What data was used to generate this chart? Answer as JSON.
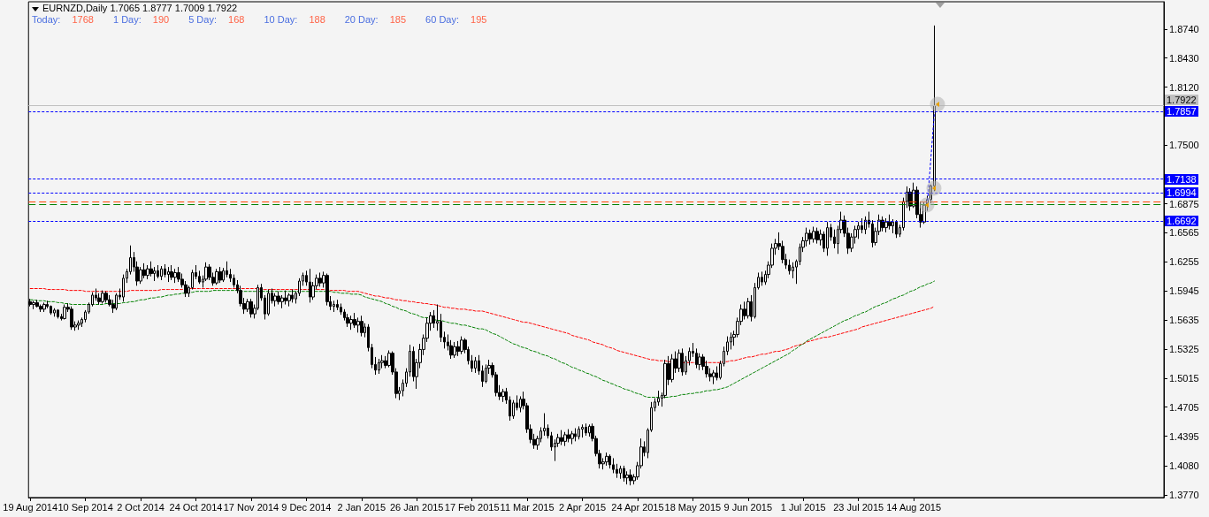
{
  "chart_data": {
    "type": "candlestick",
    "title": "EURNZD,Daily 1.7065 1.8777 1.7009 1.7922",
    "annotations": [
      "Today: 1768",
      "1 Day: 190",
      "5 Day: 168",
      "10 Day: 188",
      "20 Day: 185",
      "60 Day: 195"
    ],
    "categories": [
      "19 Aug 2014",
      null,
      null,
      null,
      null,
      null,
      null,
      null,
      null,
      null,
      null,
      null,
      null,
      null,
      null,
      null,
      "10 Sep 2014",
      null,
      null,
      null,
      null,
      null,
      null,
      null,
      null,
      null,
      null,
      null,
      null,
      null,
      null,
      null,
      "2 Oct 2014",
      null,
      null,
      null,
      null,
      null,
      null,
      null,
      null,
      null,
      null,
      null,
      null,
      null,
      null,
      null,
      "24 Oct 2014",
      null,
      null,
      null,
      null,
      null,
      null,
      null,
      null,
      null,
      null,
      null,
      null,
      null,
      null,
      null,
      "17 Nov 2014",
      null,
      null,
      null,
      null,
      null,
      null,
      null,
      null,
      null,
      null,
      null,
      null,
      null,
      null,
      null,
      "9 Dec 2014",
      null,
      null,
      null,
      null,
      null,
      null,
      null,
      null,
      null,
      null,
      null,
      null,
      null,
      null,
      null,
      "2 Jan 2015",
      null,
      null,
      null,
      null,
      null,
      null,
      null,
      null,
      null,
      null,
      null,
      null,
      null,
      null,
      null,
      "26 Jan 2015",
      null,
      null,
      null,
      null,
      null,
      null,
      null,
      null,
      null,
      null,
      null,
      null,
      null,
      null,
      null,
      "17 Feb 2015",
      null,
      null,
      null,
      null,
      null,
      null,
      null,
      null,
      null,
      null,
      null,
      null,
      null,
      null,
      null,
      "11 Mar 2015",
      null,
      null,
      null,
      null,
      null,
      null,
      null,
      null,
      null,
      null,
      null,
      null,
      null,
      null,
      null,
      "2 Apr 2015",
      null,
      null,
      null,
      null,
      null,
      null,
      null,
      null,
      null,
      null,
      null,
      null,
      null,
      null,
      null,
      "24 Apr 2015",
      null,
      null,
      null,
      null,
      null,
      null,
      null,
      null,
      null,
      null,
      null,
      null,
      null,
      null,
      null,
      "18 May 2015",
      null,
      null,
      null,
      null,
      null,
      null,
      null,
      null,
      null,
      null,
      null,
      null,
      null,
      null,
      null,
      "9 Jun 2015",
      null,
      null,
      null,
      null,
      null,
      null,
      null,
      null,
      null,
      null,
      null,
      null,
      null,
      null,
      null,
      "1 Jul 2015",
      null,
      null,
      null,
      null,
      null,
      null,
      null,
      null,
      null,
      null,
      null,
      null,
      null,
      null,
      null,
      "23 Jul 2015",
      null,
      null,
      null,
      null,
      null,
      null,
      null,
      null,
      null,
      null,
      null,
      null,
      null,
      null,
      null,
      "14 Aug 2015",
      null,
      null,
      null,
      null,
      null,
      null
    ],
    "ohlc": [
      [
        1.583,
        1.586,
        1.578,
        1.58
      ],
      [
        1.58,
        1.584,
        1.575,
        1.582
      ],
      [
        1.582,
        1.585,
        1.577,
        1.578
      ],
      [
        1.578,
        1.58,
        1.572,
        1.575
      ],
      [
        1.575,
        1.582,
        1.572,
        1.58
      ],
      [
        1.58,
        1.584,
        1.576,
        1.578
      ],
      [
        1.578,
        1.579,
        1.569,
        1.571
      ],
      [
        1.571,
        1.576,
        1.567,
        1.574
      ],
      [
        1.574,
        1.575,
        1.565,
        1.567
      ],
      [
        1.567,
        1.57,
        1.563,
        1.565
      ],
      [
        1.565,
        1.58,
        1.564,
        1.577
      ],
      [
        1.577,
        1.581,
        1.572,
        1.575
      ],
      [
        1.575,
        1.578,
        1.553,
        1.556
      ],
      [
        1.556,
        1.562,
        1.552,
        1.558
      ],
      [
        1.558,
        1.563,
        1.553,
        1.56
      ],
      [
        1.56,
        1.566,
        1.556,
        1.564
      ],
      [
        1.564,
        1.574,
        1.561,
        1.572
      ],
      [
        1.572,
        1.582,
        1.57,
        1.58
      ],
      [
        1.58,
        1.593,
        1.578,
        1.59
      ],
      [
        1.59,
        1.597,
        1.584,
        1.587
      ],
      [
        1.587,
        1.592,
        1.58,
        1.583
      ],
      [
        1.583,
        1.595,
        1.581,
        1.592
      ],
      [
        1.592,
        1.594,
        1.582,
        1.585
      ],
      [
        1.585,
        1.59,
        1.578,
        1.58
      ],
      [
        1.58,
        1.585,
        1.571,
        1.576
      ],
      [
        1.576,
        1.592,
        1.574,
        1.59
      ],
      [
        1.59,
        1.597,
        1.585,
        1.588
      ],
      [
        1.588,
        1.612,
        1.583,
        1.608
      ],
      [
        1.608,
        1.618,
        1.603,
        1.615
      ],
      [
        1.615,
        1.643,
        1.612,
        1.63
      ],
      [
        1.63,
        1.636,
        1.615,
        1.62
      ],
      [
        1.62,
        1.626,
        1.6,
        1.605
      ],
      [
        1.605,
        1.62,
        1.602,
        1.617
      ],
      [
        1.617,
        1.624,
        1.608,
        1.611
      ],
      [
        1.611,
        1.622,
        1.607,
        1.618
      ],
      [
        1.618,
        1.626,
        1.61,
        1.613
      ],
      [
        1.613,
        1.62,
        1.605,
        1.616
      ],
      [
        1.616,
        1.622,
        1.608,
        1.61
      ],
      [
        1.61,
        1.621,
        1.606,
        1.618
      ],
      [
        1.618,
        1.623,
        1.609,
        1.612
      ],
      [
        1.612,
        1.62,
        1.604,
        1.615
      ],
      [
        1.615,
        1.622,
        1.606,
        1.609
      ],
      [
        1.609,
        1.618,
        1.603,
        1.614
      ],
      [
        1.614,
        1.62,
        1.604,
        1.607
      ],
      [
        1.607,
        1.613,
        1.598,
        1.601
      ],
      [
        1.601,
        1.605,
        1.588,
        1.592
      ],
      [
        1.592,
        1.6,
        1.588,
        1.598
      ],
      [
        1.598,
        1.617,
        1.596,
        1.614
      ],
      [
        1.614,
        1.622,
        1.607,
        1.61
      ],
      [
        1.61,
        1.616,
        1.602,
        1.604
      ],
      [
        1.604,
        1.611,
        1.598,
        1.607
      ],
      [
        1.607,
        1.625,
        1.605,
        1.62
      ],
      [
        1.62,
        1.623,
        1.606,
        1.609
      ],
      [
        1.609,
        1.614,
        1.6,
        1.603
      ],
      [
        1.603,
        1.618,
        1.601,
        1.615
      ],
      [
        1.615,
        1.62,
        1.603,
        1.606
      ],
      [
        1.606,
        1.619,
        1.604,
        1.616
      ],
      [
        1.616,
        1.626,
        1.609,
        1.612
      ],
      [
        1.612,
        1.618,
        1.604,
        1.608
      ],
      [
        1.608,
        1.612,
        1.598,
        1.601
      ],
      [
        1.601,
        1.606,
        1.592,
        1.595
      ],
      [
        1.595,
        1.6,
        1.578,
        1.581
      ],
      [
        1.581,
        1.587,
        1.57,
        1.575
      ],
      [
        1.575,
        1.586,
        1.572,
        1.583
      ],
      [
        1.583,
        1.586,
        1.566,
        1.57
      ],
      [
        1.57,
        1.58,
        1.565,
        1.576
      ],
      [
        1.576,
        1.601,
        1.574,
        1.598
      ],
      [
        1.598,
        1.602,
        1.584,
        1.587
      ],
      [
        1.587,
        1.59,
        1.564,
        1.57
      ],
      [
        1.57,
        1.596,
        1.568,
        1.592
      ],
      [
        1.592,
        1.597,
        1.581,
        1.584
      ],
      [
        1.584,
        1.592,
        1.578,
        1.589
      ],
      [
        1.589,
        1.594,
        1.58,
        1.583
      ],
      [
        1.583,
        1.59,
        1.576,
        1.587
      ],
      [
        1.587,
        1.595,
        1.58,
        1.584
      ],
      [
        1.584,
        1.592,
        1.578,
        1.59
      ],
      [
        1.59,
        1.596,
        1.582,
        1.586
      ],
      [
        1.586,
        1.594,
        1.581,
        1.592
      ],
      [
        1.592,
        1.608,
        1.589,
        1.605
      ],
      [
        1.605,
        1.614,
        1.6,
        1.611
      ],
      [
        1.611,
        1.616,
        1.6,
        1.604
      ],
      [
        1.604,
        1.618,
        1.582,
        1.588
      ],
      [
        1.588,
        1.604,
        1.585,
        1.6
      ],
      [
        1.6,
        1.612,
        1.596,
        1.608
      ],
      [
        1.608,
        1.614,
        1.599,
        1.603
      ],
      [
        1.603,
        1.615,
        1.598,
        1.611
      ],
      [
        1.611,
        1.613,
        1.579,
        1.583
      ],
      [
        1.583,
        1.589,
        1.574,
        1.578
      ],
      [
        1.578,
        1.584,
        1.572,
        1.58
      ],
      [
        1.58,
        1.585,
        1.574,
        1.577
      ],
      [
        1.577,
        1.581,
        1.569,
        1.572
      ],
      [
        1.572,
        1.575,
        1.563,
        1.566
      ],
      [
        1.566,
        1.57,
        1.556,
        1.56
      ],
      [
        1.56,
        1.568,
        1.553,
        1.564
      ],
      [
        1.564,
        1.571,
        1.555,
        1.558
      ],
      [
        1.558,
        1.566,
        1.55,
        1.562
      ],
      [
        1.562,
        1.568,
        1.546,
        1.55
      ],
      [
        1.55,
        1.56,
        1.545,
        1.556
      ],
      [
        1.556,
        1.559,
        1.53,
        1.534
      ],
      [
        1.534,
        1.538,
        1.512,
        1.516
      ],
      [
        1.516,
        1.524,
        1.505,
        1.51
      ],
      [
        1.51,
        1.522,
        1.506,
        1.518
      ],
      [
        1.518,
        1.526,
        1.512,
        1.52
      ],
      [
        1.52,
        1.525,
        1.512,
        1.515
      ],
      [
        1.515,
        1.531,
        1.513,
        1.528
      ],
      [
        1.528,
        1.53,
        1.505,
        1.508
      ],
      [
        1.508,
        1.512,
        1.48,
        1.485
      ],
      [
        1.485,
        1.492,
        1.478,
        1.488
      ],
      [
        1.488,
        1.5,
        1.482,
        1.496
      ],
      [
        1.496,
        1.512,
        1.492,
        1.508
      ],
      [
        1.508,
        1.537,
        1.503,
        1.53
      ],
      [
        1.53,
        1.535,
        1.498,
        1.503
      ],
      [
        1.503,
        1.522,
        1.49,
        1.518
      ],
      [
        1.518,
        1.538,
        1.512,
        1.532
      ],
      [
        1.532,
        1.548,
        1.526,
        1.544
      ],
      [
        1.544,
        1.566,
        1.54,
        1.56
      ],
      [
        1.56,
        1.572,
        1.552,
        1.568
      ],
      [
        1.568,
        1.574,
        1.555,
        1.56
      ],
      [
        1.56,
        1.58,
        1.552,
        1.562
      ],
      [
        1.562,
        1.57,
        1.54,
        1.545
      ],
      [
        1.545,
        1.551,
        1.533,
        1.54
      ],
      [
        1.54,
        1.548,
        1.531,
        1.536
      ],
      [
        1.536,
        1.542,
        1.522,
        1.526
      ],
      [
        1.526,
        1.54,
        1.523,
        1.535
      ],
      [
        1.535,
        1.541,
        1.525,
        1.53
      ],
      [
        1.53,
        1.546,
        1.527,
        1.542
      ],
      [
        1.542,
        1.544,
        1.528,
        1.532
      ],
      [
        1.532,
        1.535,
        1.516,
        1.52
      ],
      [
        1.52,
        1.526,
        1.508,
        1.512
      ],
      [
        1.512,
        1.524,
        1.507,
        1.52
      ],
      [
        1.52,
        1.526,
        1.505,
        1.509
      ],
      [
        1.509,
        1.515,
        1.492,
        1.498
      ],
      [
        1.498,
        1.516,
        1.496,
        1.512
      ],
      [
        1.512,
        1.521,
        1.506,
        1.515
      ],
      [
        1.515,
        1.518,
        1.502,
        1.505
      ],
      [
        1.505,
        1.508,
        1.482,
        1.486
      ],
      [
        1.486,
        1.494,
        1.478,
        1.482
      ],
      [
        1.482,
        1.49,
        1.476,
        1.487
      ],
      [
        1.487,
        1.491,
        1.474,
        1.478
      ],
      [
        1.478,
        1.482,
        1.456,
        1.461
      ],
      [
        1.461,
        1.478,
        1.458,
        1.475
      ],
      [
        1.475,
        1.483,
        1.467,
        1.47
      ],
      [
        1.47,
        1.482,
        1.465,
        1.479
      ],
      [
        1.479,
        1.487,
        1.468,
        1.472
      ],
      [
        1.472,
        1.475,
        1.443,
        1.447
      ],
      [
        1.447,
        1.452,
        1.432,
        1.436
      ],
      [
        1.436,
        1.442,
        1.426,
        1.43
      ],
      [
        1.43,
        1.44,
        1.425,
        1.437
      ],
      [
        1.437,
        1.449,
        1.433,
        1.445
      ],
      [
        1.445,
        1.464,
        1.44,
        1.448
      ],
      [
        1.448,
        1.452,
        1.437,
        1.44
      ],
      [
        1.44,
        1.444,
        1.424,
        1.428
      ],
      [
        1.428,
        1.436,
        1.413,
        1.432
      ],
      [
        1.432,
        1.442,
        1.428,
        1.438
      ],
      [
        1.438,
        1.446,
        1.43,
        1.434
      ],
      [
        1.434,
        1.444,
        1.429,
        1.441
      ],
      [
        1.441,
        1.447,
        1.433,
        1.437
      ],
      [
        1.437,
        1.445,
        1.431,
        1.442
      ],
      [
        1.442,
        1.448,
        1.434,
        1.439
      ],
      [
        1.439,
        1.45,
        1.436,
        1.447
      ],
      [
        1.447,
        1.452,
        1.438,
        1.449
      ],
      [
        1.449,
        1.453,
        1.44,
        1.443
      ],
      [
        1.443,
        1.452,
        1.439,
        1.45
      ],
      [
        1.45,
        1.453,
        1.434,
        1.437
      ],
      [
        1.437,
        1.44,
        1.418,
        1.421
      ],
      [
        1.421,
        1.425,
        1.405,
        1.41
      ],
      [
        1.41,
        1.416,
        1.404,
        1.412
      ],
      [
        1.412,
        1.422,
        1.408,
        1.418
      ],
      [
        1.418,
        1.42,
        1.405,
        1.409
      ],
      [
        1.409,
        1.416,
        1.4,
        1.404
      ],
      [
        1.404,
        1.41,
        1.395,
        1.4
      ],
      [
        1.4,
        1.408,
        1.394,
        1.405
      ],
      [
        1.405,
        1.408,
        1.391,
        1.395
      ],
      [
        1.395,
        1.402,
        1.388,
        1.398
      ],
      [
        1.398,
        1.404,
        1.387,
        1.392
      ],
      [
        1.392,
        1.399,
        1.388,
        1.396
      ],
      [
        1.396,
        1.412,
        1.393,
        1.408
      ],
      [
        1.408,
        1.437,
        1.405,
        1.428
      ],
      [
        1.428,
        1.434,
        1.418,
        1.422
      ],
      [
        1.422,
        1.448,
        1.416,
        1.446
      ],
      [
        1.446,
        1.476,
        1.444,
        1.47
      ],
      [
        1.47,
        1.48,
        1.466,
        1.476
      ],
      [
        1.476,
        1.488,
        1.472,
        1.48
      ],
      [
        1.48,
        1.486,
        1.471,
        1.483
      ],
      [
        1.483,
        1.521,
        1.48,
        1.517
      ],
      [
        1.517,
        1.525,
        1.494,
        1.5
      ],
      [
        1.5,
        1.527,
        1.497,
        1.522
      ],
      [
        1.522,
        1.53,
        1.507,
        1.512
      ],
      [
        1.512,
        1.532,
        1.508,
        1.528
      ],
      [
        1.528,
        1.533,
        1.504,
        1.508
      ],
      [
        1.508,
        1.525,
        1.505,
        1.52
      ],
      [
        1.52,
        1.534,
        1.515,
        1.53
      ],
      [
        1.53,
        1.539,
        1.524,
        1.528
      ],
      [
        1.528,
        1.533,
        1.512,
        1.516
      ],
      [
        1.516,
        1.528,
        1.51,
        1.524
      ],
      [
        1.524,
        1.527,
        1.51,
        1.514
      ],
      [
        1.514,
        1.52,
        1.502,
        1.506
      ],
      [
        1.506,
        1.512,
        1.498,
        1.503
      ],
      [
        1.503,
        1.51,
        1.495,
        1.507
      ],
      [
        1.507,
        1.514,
        1.499,
        1.502
      ],
      [
        1.502,
        1.52,
        1.5,
        1.517
      ],
      [
        1.517,
        1.535,
        1.514,
        1.53
      ],
      [
        1.53,
        1.546,
        1.526,
        1.54
      ],
      [
        1.54,
        1.55,
        1.532,
        1.545
      ],
      [
        1.545,
        1.552,
        1.536,
        1.548
      ],
      [
        1.548,
        1.566,
        1.545,
        1.562
      ],
      [
        1.562,
        1.58,
        1.558,
        1.575
      ],
      [
        1.575,
        1.583,
        1.564,
        1.568
      ],
      [
        1.568,
        1.587,
        1.565,
        1.583
      ],
      [
        1.583,
        1.59,
        1.562,
        1.567
      ],
      [
        1.567,
        1.603,
        1.565,
        1.598
      ],
      [
        1.598,
        1.614,
        1.596,
        1.609
      ],
      [
        1.609,
        1.615,
        1.6,
        1.604
      ],
      [
        1.604,
        1.616,
        1.601,
        1.612
      ],
      [
        1.612,
        1.626,
        1.608,
        1.622
      ],
      [
        1.622,
        1.645,
        1.619,
        1.64
      ],
      [
        1.64,
        1.65,
        1.633,
        1.645
      ],
      [
        1.645,
        1.657,
        1.638,
        1.642
      ],
      [
        1.642,
        1.648,
        1.624,
        1.628
      ],
      [
        1.628,
        1.634,
        1.618,
        1.622
      ],
      [
        1.622,
        1.628,
        1.612,
        1.616
      ],
      [
        1.616,
        1.625,
        1.608,
        1.62
      ],
      [
        1.62,
        1.628,
        1.602,
        1.626
      ],
      [
        1.626,
        1.645,
        1.622,
        1.641
      ],
      [
        1.641,
        1.652,
        1.636,
        1.648
      ],
      [
        1.648,
        1.662,
        1.642,
        1.656
      ],
      [
        1.656,
        1.66,
        1.644,
        1.65
      ],
      [
        1.65,
        1.663,
        1.646,
        1.658
      ],
      [
        1.658,
        1.662,
        1.645,
        1.649
      ],
      [
        1.649,
        1.66,
        1.643,
        1.655
      ],
      [
        1.655,
        1.658,
        1.636,
        1.64
      ],
      [
        1.64,
        1.668,
        1.632,
        1.662
      ],
      [
        1.662,
        1.666,
        1.648,
        1.652
      ],
      [
        1.652,
        1.66,
        1.64,
        1.645
      ],
      [
        1.645,
        1.664,
        1.634,
        1.66
      ],
      [
        1.66,
        1.679,
        1.656,
        1.67
      ],
      [
        1.67,
        1.675,
        1.652,
        1.656
      ],
      [
        1.656,
        1.662,
        1.634,
        1.64
      ],
      [
        1.64,
        1.656,
        1.636,
        1.652
      ],
      [
        1.652,
        1.664,
        1.645,
        1.66
      ],
      [
        1.66,
        1.668,
        1.65,
        1.664
      ],
      [
        1.664,
        1.672,
        1.656,
        1.66
      ],
      [
        1.66,
        1.674,
        1.655,
        1.67
      ],
      [
        1.67,
        1.679,
        1.662,
        1.666
      ],
      [
        1.666,
        1.67,
        1.641,
        1.646
      ],
      [
        1.646,
        1.662,
        1.643,
        1.658
      ],
      [
        1.658,
        1.676,
        1.654,
        1.67
      ],
      [
        1.67,
        1.674,
        1.658,
        1.662
      ],
      [
        1.662,
        1.672,
        1.657,
        1.668
      ],
      [
        1.668,
        1.676,
        1.66,
        1.664
      ],
      [
        1.664,
        1.671,
        1.656,
        1.668
      ],
      [
        1.668,
        1.67,
        1.651,
        1.655
      ],
      [
        1.655,
        1.665,
        1.652,
        1.662
      ],
      [
        1.662,
        1.694,
        1.659,
        1.69
      ],
      [
        1.69,
        1.706,
        1.683,
        1.7
      ],
      [
        1.7,
        1.704,
        1.68,
        1.685
      ],
      [
        1.685,
        1.71,
        1.683,
        1.702
      ],
      [
        1.702,
        1.706,
        1.672,
        1.676
      ],
      [
        1.676,
        1.69,
        1.662,
        1.668
      ],
      [
        1.668,
        1.689,
        1.666,
        1.686
      ],
      [
        1.686,
        1.696,
        1.68,
        1.692
      ],
      [
        1.692,
        1.708,
        1.688,
        1.7065
      ],
      [
        1.7065,
        1.8777,
        1.7009,
        1.7922
      ]
    ],
    "color": "#000000",
    "series": [
      {
        "type": "line",
        "color": "#ff0000",
        "line_style": "dotted",
        "values": [
          1.597,
          1.597,
          1.597,
          1.597,
          1.597,
          1.596,
          1.596,
          1.596,
          1.596,
          1.596,
          1.596,
          1.595,
          1.595,
          1.595,
          1.595,
          1.595,
          1.594,
          1.594,
          1.594,
          1.594,
          1.594,
          1.594,
          1.594,
          1.594,
          1.594,
          1.594,
          1.594,
          1.594,
          1.594,
          1.595,
          1.595,
          1.595,
          1.595,
          1.595,
          1.595,
          1.595,
          1.595,
          1.595,
          1.596,
          1.596,
          1.596,
          1.596,
          1.596,
          1.596,
          1.596,
          1.597,
          1.597,
          1.597,
          1.597,
          1.597,
          1.597,
          1.597,
          1.597,
          1.597,
          1.597,
          1.597,
          1.597,
          1.597,
          1.597,
          1.597,
          1.597,
          1.597,
          1.597,
          1.597,
          1.597,
          1.597,
          1.597,
          1.596,
          1.596,
          1.596,
          1.596,
          1.596,
          1.596,
          1.596,
          1.596,
          1.596,
          1.596,
          1.596,
          1.596,
          1.596,
          1.596,
          1.596,
          1.596,
          1.596,
          1.596,
          1.596,
          1.596,
          1.595,
          1.595,
          1.595,
          1.595,
          1.595,
          1.594,
          1.594,
          1.594,
          1.594,
          1.593,
          1.592,
          1.591,
          1.59,
          1.589,
          1.589,
          1.588,
          1.587,
          1.587,
          1.586,
          1.585,
          1.585,
          1.584,
          1.584,
          1.583,
          1.583,
          1.582,
          1.582,
          1.581,
          1.581,
          1.58,
          1.58,
          1.579,
          1.578,
          1.577,
          1.577,
          1.576,
          1.576,
          1.575,
          1.575,
          1.575,
          1.574,
          1.574,
          1.573,
          1.573,
          1.573,
          1.572,
          1.571,
          1.57,
          1.569,
          1.568,
          1.567,
          1.566,
          1.565,
          1.564,
          1.563,
          1.562,
          1.561,
          1.561,
          1.56,
          1.559,
          1.558,
          1.557,
          1.556,
          1.555,
          1.554,
          1.553,
          1.552,
          1.551,
          1.55,
          1.549,
          1.547,
          1.546,
          1.545,
          1.544,
          1.543,
          1.542,
          1.54,
          1.539,
          1.538,
          1.537,
          1.535,
          1.534,
          1.533,
          1.531,
          1.53,
          1.529,
          1.528,
          1.527,
          1.526,
          1.525,
          1.524,
          1.523,
          1.522,
          1.521,
          1.521,
          1.52,
          1.52,
          1.52,
          1.519,
          1.519,
          1.519,
          1.519,
          1.518,
          1.518,
          1.518,
          1.518,
          1.518,
          1.518,
          1.518,
          1.518,
          1.518,
          1.518,
          1.518,
          1.518,
          1.519,
          1.519,
          1.52,
          1.52,
          1.521,
          1.522,
          1.523,
          1.524,
          1.524,
          1.525,
          1.526,
          1.527,
          1.527,
          1.528,
          1.529,
          1.53,
          1.53,
          1.531,
          1.532,
          1.533,
          1.535,
          1.536,
          1.537,
          1.538,
          1.54,
          1.541,
          1.542,
          1.543,
          1.544,
          1.545,
          1.545,
          1.546,
          1.547,
          1.548,
          1.549,
          1.55,
          1.551,
          1.552,
          1.553,
          1.554,
          1.556,
          1.557,
          1.558,
          1.559,
          1.56,
          1.561,
          1.562,
          1.563,
          1.564,
          1.565,
          1.566,
          1.567,
          1.568,
          1.569,
          1.57,
          1.571,
          1.572,
          1.573,
          1.574,
          1.575,
          1.576,
          1.578
        ]
      },
      {
        "type": "line",
        "color": "#008000",
        "line_style": "dotted",
        "values": [
          1.585,
          1.585,
          1.584,
          1.584,
          1.584,
          1.583,
          1.583,
          1.583,
          1.582,
          1.582,
          1.581,
          1.581,
          1.58,
          1.58,
          1.58,
          1.58,
          1.58,
          1.58,
          1.58,
          1.58,
          1.58,
          1.58,
          1.581,
          1.581,
          1.581,
          1.581,
          1.581,
          1.582,
          1.582,
          1.583,
          1.583,
          1.584,
          1.585,
          1.585,
          1.586,
          1.587,
          1.587,
          1.588,
          1.588,
          1.589,
          1.59,
          1.59,
          1.591,
          1.591,
          1.592,
          1.592,
          1.593,
          1.593,
          1.594,
          1.594,
          1.594,
          1.594,
          1.594,
          1.595,
          1.595,
          1.595,
          1.595,
          1.595,
          1.595,
          1.595,
          1.595,
          1.594,
          1.594,
          1.594,
          1.594,
          1.594,
          1.594,
          1.594,
          1.594,
          1.594,
          1.594,
          1.594,
          1.594,
          1.594,
          1.594,
          1.594,
          1.594,
          1.594,
          1.594,
          1.594,
          1.594,
          1.594,
          1.594,
          1.594,
          1.594,
          1.594,
          1.594,
          1.594,
          1.593,
          1.593,
          1.592,
          1.592,
          1.592,
          1.591,
          1.591,
          1.591,
          1.59,
          1.588,
          1.587,
          1.586,
          1.585,
          1.584,
          1.583,
          1.581,
          1.58,
          1.578,
          1.577,
          1.575,
          1.574,
          1.573,
          1.571,
          1.57,
          1.569,
          1.567,
          1.566,
          1.566,
          1.565,
          1.564,
          1.563,
          1.563,
          1.562,
          1.561,
          1.56,
          1.56,
          1.559,
          1.558,
          1.558,
          1.557,
          1.556,
          1.555,
          1.554,
          1.554,
          1.553,
          1.551,
          1.549,
          1.548,
          1.546,
          1.544,
          1.542,
          1.54,
          1.538,
          1.537,
          1.535,
          1.534,
          1.533,
          1.531,
          1.53,
          1.529,
          1.527,
          1.526,
          1.525,
          1.523,
          1.522,
          1.52,
          1.518,
          1.517,
          1.515,
          1.513,
          1.512,
          1.51,
          1.509,
          1.507,
          1.506,
          1.504,
          1.503,
          1.501,
          1.499,
          1.498,
          1.496,
          1.495,
          1.493,
          1.492,
          1.49,
          1.489,
          1.488,
          1.486,
          1.485,
          1.484,
          1.482,
          1.481,
          1.481,
          1.481,
          1.481,
          1.481,
          1.481,
          1.481,
          1.482,
          1.482,
          1.483,
          1.484,
          1.484,
          1.485,
          1.485,
          1.486,
          1.486,
          1.487,
          1.488,
          1.488,
          1.489,
          1.489,
          1.49,
          1.491,
          1.492,
          1.494,
          1.496,
          1.498,
          1.5,
          1.502,
          1.504,
          1.506,
          1.508,
          1.51,
          1.512,
          1.514,
          1.516,
          1.518,
          1.52,
          1.522,
          1.524,
          1.526,
          1.528,
          1.531,
          1.533,
          1.536,
          1.538,
          1.541,
          1.543,
          1.545,
          1.547,
          1.549,
          1.551,
          1.553,
          1.555,
          1.557,
          1.559,
          1.561,
          1.563,
          1.564,
          1.566,
          1.568,
          1.569,
          1.571,
          1.572,
          1.574,
          1.576,
          1.578,
          1.579,
          1.581,
          1.582,
          1.584,
          1.586,
          1.587,
          1.589,
          1.59,
          1.592,
          1.594,
          1.595,
          1.597,
          1.599,
          1.6,
          1.602,
          1.603,
          1.605
        ]
      }
    ],
    "ylim": [
      1.374,
      1.903
    ],
    "yticks": [
      {
        "value": 1.874,
        "label": "1.8740"
      },
      {
        "value": 1.843,
        "label": "1.8430"
      },
      {
        "value": 1.812,
        "label": "1.8120"
      },
      {
        "value": 1.75,
        "label": "1.7500"
      },
      {
        "value": 1.6875,
        "label": "1.6875"
      },
      {
        "value": 1.6565,
        "label": "1.6565"
      },
      {
        "value": 1.6255,
        "label": "1.6255"
      },
      {
        "value": 1.5945,
        "label": "1.5945"
      },
      {
        "value": 1.5635,
        "label": "1.5635"
      },
      {
        "value": 1.5325,
        "label": "1.5325"
      },
      {
        "value": 1.5015,
        "label": "1.5015"
      },
      {
        "value": 1.4705,
        "label": "1.4705"
      },
      {
        "value": 1.4395,
        "label": "1.4395"
      },
      {
        "value": 1.408,
        "label": "1.4080"
      },
      {
        "value": 1.377,
        "label": "1.3770"
      }
    ],
    "ref_lines": [
      {
        "axis": "y",
        "value": 1.7922,
        "label": "1.7922",
        "color": "#c0c0c0",
        "line_style": "solid"
      },
      {
        "axis": "y",
        "value": 1.7857,
        "label": "1.7857",
        "color": "#0000ff",
        "line_style": "dotted"
      },
      {
        "axis": "y",
        "value": 1.7138,
        "label": "1.7138",
        "color": "#0000ff",
        "line_style": "dotted"
      },
      {
        "axis": "y",
        "value": 1.6994,
        "label": "1.6994",
        "color": "#0000ff",
        "line_style": "dotted"
      },
      {
        "axis": "y",
        "value": 1.6895,
        "color": "#ff4500",
        "line_style": "dashed"
      },
      {
        "axis": "y",
        "value": 1.687,
        "color": "#008000",
        "line_style": "dashed"
      },
      {
        "axis": "y",
        "value": 1.6692,
        "label": "1.6692",
        "color": "#0000ff",
        "line_style": "dotted"
      }
    ]
  }
}
